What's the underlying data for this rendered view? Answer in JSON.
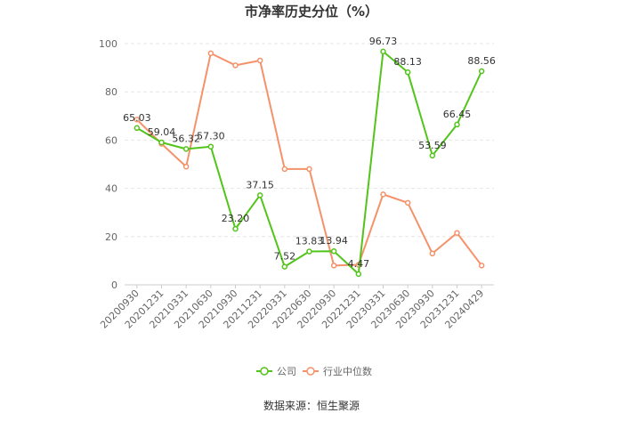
{
  "chart_data": {
    "type": "line",
    "title": "市净率历史分位（%）",
    "categories": [
      "20200930",
      "20201231",
      "20210331",
      "20210630",
      "20210930",
      "20211231",
      "20220331",
      "20220630",
      "20220930",
      "20221231",
      "20230331",
      "20230630",
      "20230930",
      "20231231",
      "20240429"
    ],
    "ylim": [
      0,
      100
    ],
    "yticks": [
      0,
      20,
      40,
      60,
      80,
      100
    ],
    "grid": true,
    "legend_position": "bottom",
    "series": [
      {
        "name": "公司",
        "color": "#52c41a",
        "values": [
          65.03,
          59.04,
          56.32,
          57.3,
          23.2,
          37.15,
          7.52,
          13.83,
          13.94,
          4.47,
          96.73,
          88.13,
          53.59,
          66.45,
          88.56
        ],
        "labels": [
          "65.03",
          "59.04",
          "56.32",
          "57.30",
          "23.20",
          "37.15",
          "7.52",
          "13.83",
          "13.94",
          "4.47",
          "96.73",
          "88.13",
          "53.59",
          "66.45",
          "88.56"
        ]
      },
      {
        "name": "行业中位数",
        "color": "#f4926a",
        "values": [
          68.5,
          58.5,
          49,
          96,
          91,
          93,
          48,
          48,
          8,
          8.3,
          37.5,
          34,
          13,
          21.5,
          8
        ]
      }
    ]
  },
  "source_text": "数据来源：恒生聚源"
}
